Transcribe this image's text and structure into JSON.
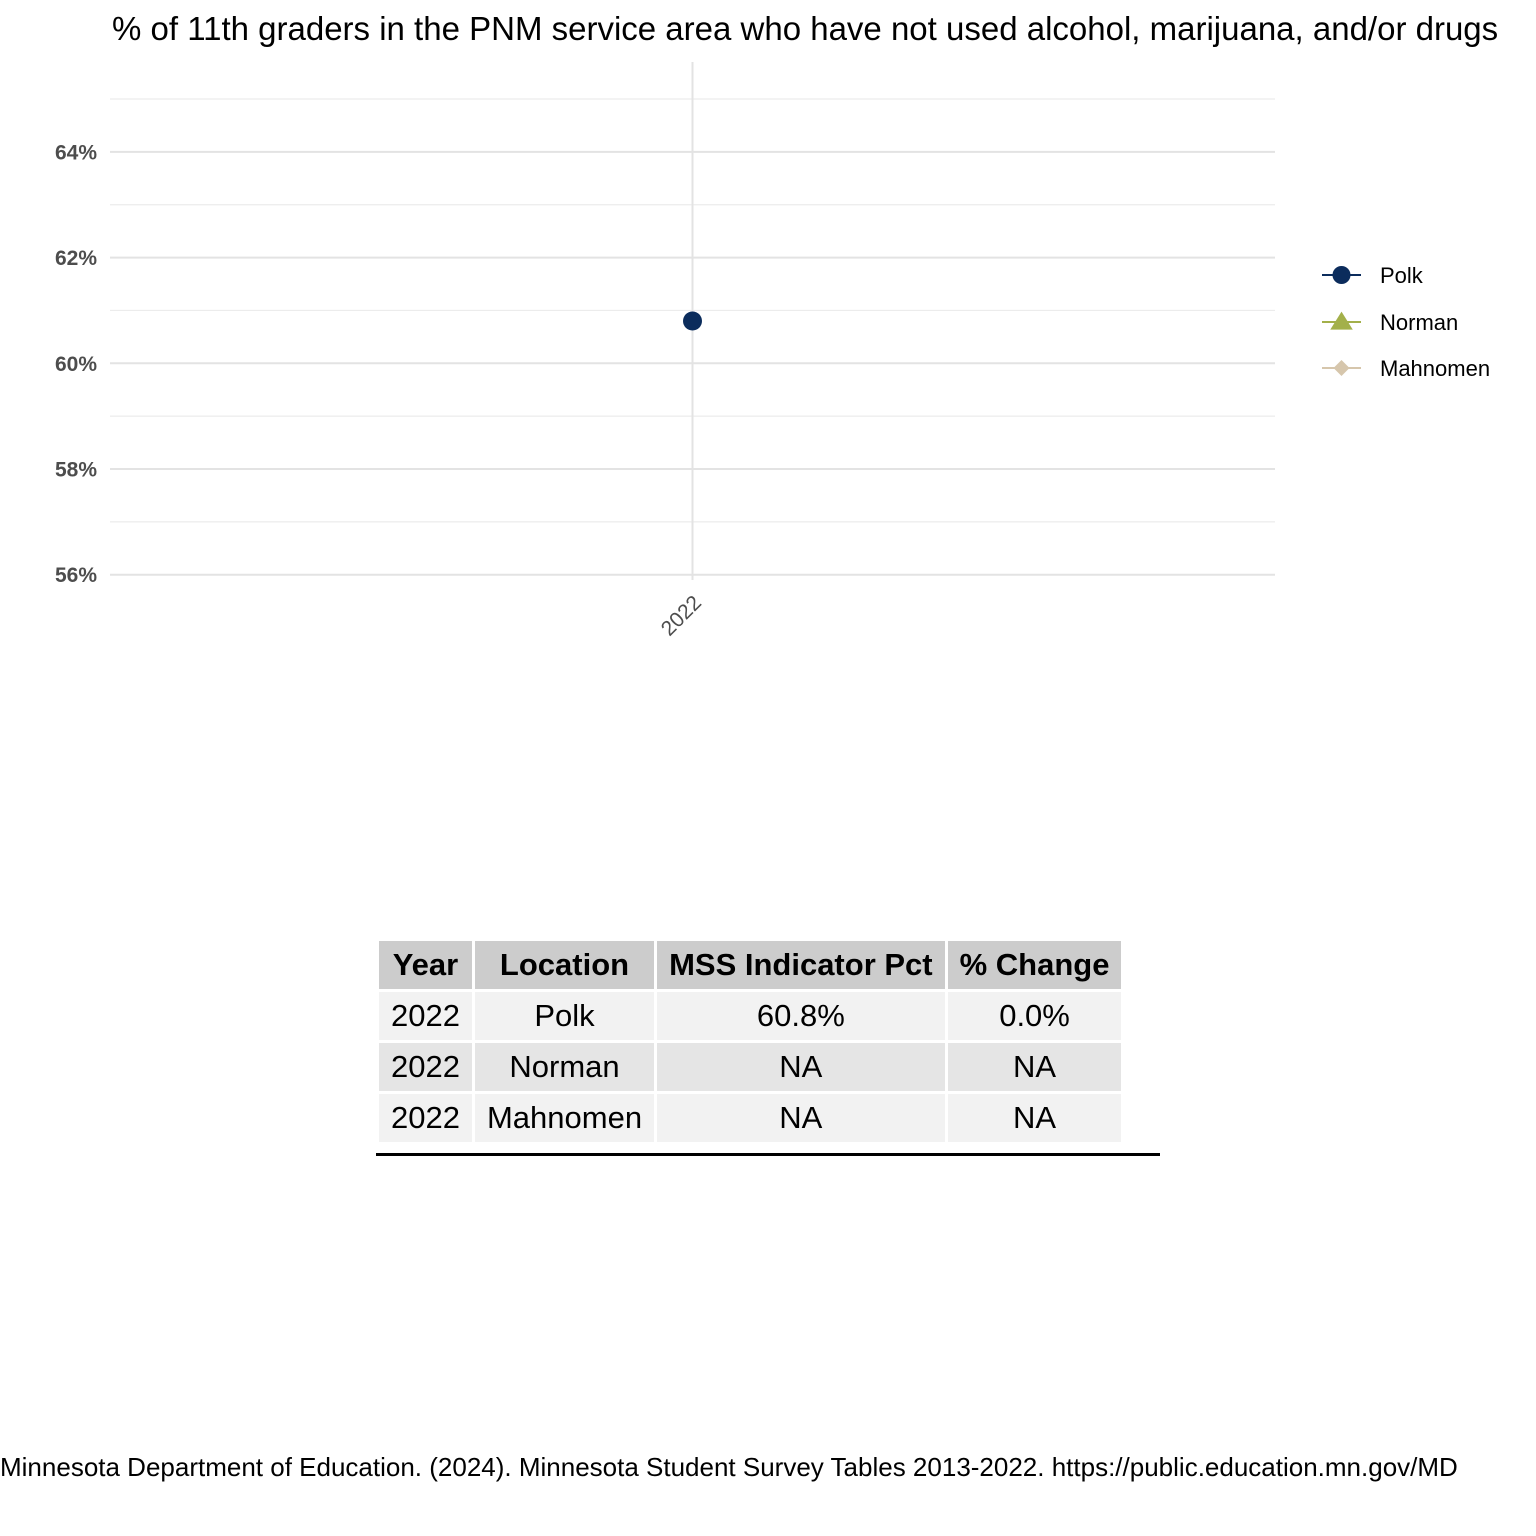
{
  "chart_data": {
    "type": "line",
    "title": "% of 11th graders in the PNM service area who have not used alcohol, marijuana, and/or drugs",
    "x": [
      "2022"
    ],
    "ylim": [
      55.9,
      65.7
    ],
    "yticks": [
      56,
      58,
      60,
      62,
      64
    ],
    "ytick_labels": [
      "56%",
      "58%",
      "60%",
      "62%",
      "64%"
    ],
    "grid": true,
    "legend_position": "right",
    "series": [
      {
        "name": "Polk",
        "marker": "circle",
        "color": "#0b2c5c",
        "values": [
          60.8
        ]
      },
      {
        "name": "Norman",
        "marker": "triangle",
        "color": "#a3b04a",
        "values": [
          null
        ]
      },
      {
        "name": "Mahnomen",
        "marker": "diamond",
        "color": "#d6c6ac",
        "values": [
          null
        ]
      }
    ]
  },
  "table": {
    "headers": [
      "Year",
      "Location",
      "MSS Indicator Pct",
      "% Change"
    ],
    "rows": [
      [
        "2022",
        "Polk",
        "60.8%",
        "0.0%"
      ],
      [
        "2022",
        "Norman",
        "NA",
        "NA"
      ],
      [
        "2022",
        "Mahnomen",
        "NA",
        "NA"
      ]
    ]
  },
  "caption": "Minnesota Department of Education. (2024). Minnesota Student Survey Tables 2013-2022. https://public.education.mn.gov/MD"
}
